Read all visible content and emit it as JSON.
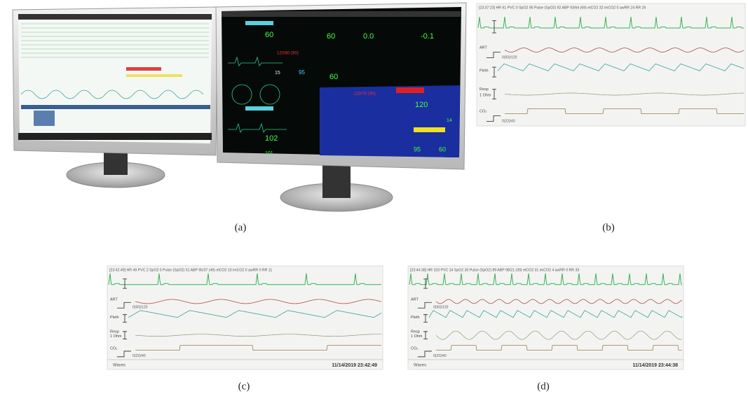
{
  "figure": {
    "panels": [
      {
        "label": "(a)",
        "screen_values": [
          "60",
          "60",
          "0.0",
          "-0.1",
          "120/80 (90)",
          "15",
          "95",
          "60",
          "120/70 (90)",
          "120",
          "14",
          "102",
          "101",
          "95",
          "60"
        ]
      },
      {
        "label": "(b)",
        "header": "[23:37:23] HR 61 PVC 0 SpO2 95 Pulse (SpO2) 92 ABP 93/64 (69) etCO2 32 imCO2 0 awRR 24 RR 26",
        "labels": {
          "art": "ART",
          "pleth": "Pleth",
          "resp": "Resp",
          "ohm": "1 Ohm",
          "co2": "CO₂"
        },
        "scales": [
          "0(50)/120",
          "0(22)/40"
        ]
      },
      {
        "label": "(c)",
        "header": "[23:42:49] HR 49 PVC 2 SpO2 0 Pulse (SpO2) 51 ABP 95/37 (49) etCO2 10 imCO2 0 awRR 0 RR 11",
        "labels": {
          "art": "ART",
          "pleth": "Pleth",
          "resp": "Resp",
          "ohm": "1 Ohm",
          "co2": "CO₂"
        },
        "scales": [
          "0(50)/120",
          "0(22)/40"
        ],
        "footer": {
          "left": "Waves",
          "right": "11/14/2019 23:42:49"
        }
      },
      {
        "label": "(d)",
        "header": "[23:44:38] HR 103 PVC 14 SpO2 30 Pulse (SpO2) 89 ABP 98/21 (39) etCO2 31 imCO2 4 awRR 0 RR 33",
        "labels": {
          "art": "ART",
          "pleth": "Pleth",
          "resp": "Resp",
          "ohm": "1 Ohm",
          "co2": "CO₂"
        },
        "scales": [
          "0(50)/120",
          "0(22)/40"
        ],
        "footer": {
          "left": "Waves",
          "right": "11/14/2019 23:44:38"
        }
      }
    ]
  }
}
